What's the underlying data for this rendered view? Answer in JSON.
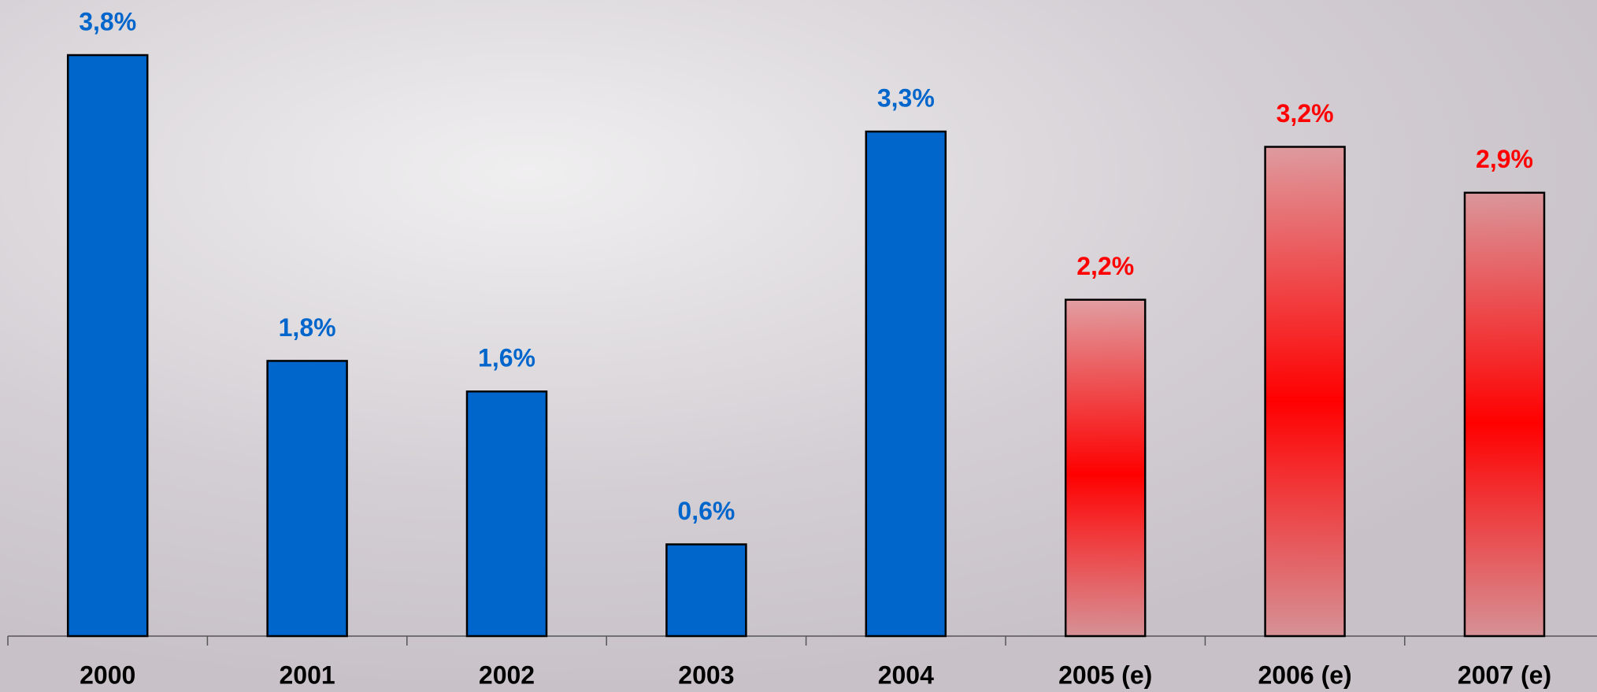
{
  "chart_data": {
    "type": "bar",
    "categories": [
      "2000",
      "2001",
      "2002",
      "2003",
      "2004",
      "2005 (e)",
      "2006 (e)",
      "2007 (e)"
    ],
    "values": [
      3.8,
      1.8,
      1.6,
      0.6,
      3.3,
      2.2,
      3.2,
      2.9
    ],
    "value_labels": [
      "3,8%",
      "1,8%",
      "1,6%",
      "0,6%",
      "3,3%",
      "2,2%",
      "3,2%",
      "2,9%"
    ],
    "colors": [
      "#0066cc",
      "#0066cc",
      "#0066cc",
      "#0066cc",
      "#0066cc",
      "#ff0000",
      "#ff0000",
      "#ff0000"
    ]
  }
}
